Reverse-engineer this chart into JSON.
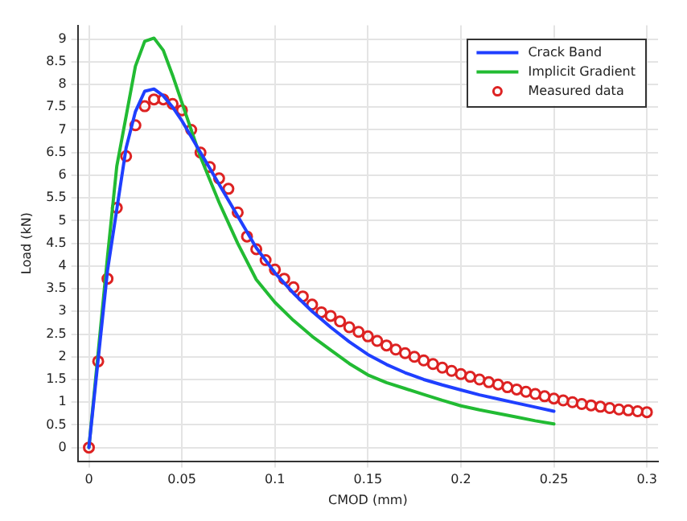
{
  "chart_data": {
    "type": "line",
    "xlabel": "CMOD (mm)",
    "ylabel": "Load (kN)",
    "xlim": [
      -0.006,
      0.306
    ],
    "xticks": [
      0,
      0.05,
      0.1,
      0.15,
      0.2,
      0.25,
      0.3
    ],
    "ylim": [
      -0.3,
      9.3
    ],
    "yticks": [
      0,
      0.5,
      1,
      1.5,
      2,
      2.5,
      3,
      3.5,
      4,
      4.5,
      5,
      5.5,
      6,
      6.5,
      7,
      7.5,
      8,
      8.5,
      9
    ],
    "grid": true,
    "legend": "top right",
    "series": [
      {
        "name": "Crack Band",
        "color": "#1f3fff",
        "type": "line",
        "marker": "none",
        "x": [
          0,
          0.01,
          0.02,
          0.025,
          0.03,
          0.035,
          0.04,
          0.045,
          0.05,
          0.06,
          0.07,
          0.08,
          0.09,
          0.1,
          0.11,
          0.12,
          0.13,
          0.14,
          0.15,
          0.16,
          0.17,
          0.18,
          0.19,
          0.2,
          0.21,
          0.22,
          0.23,
          0.24,
          0.25
        ],
        "values": [
          0,
          3.9,
          6.6,
          7.4,
          7.85,
          7.9,
          7.75,
          7.5,
          7.2,
          6.5,
          5.8,
          5.1,
          4.4,
          3.85,
          3.4,
          3.0,
          2.65,
          2.33,
          2.05,
          1.83,
          1.65,
          1.5,
          1.38,
          1.27,
          1.16,
          1.07,
          0.98,
          0.89,
          0.8
        ]
      },
      {
        "name": "Implicit Gradient",
        "color": "#22bb33",
        "type": "line",
        "marker": "none",
        "x": [
          0,
          0.01,
          0.015,
          0.02,
          0.025,
          0.03,
          0.035,
          0.04,
          0.045,
          0.05,
          0.06,
          0.07,
          0.08,
          0.09,
          0.1,
          0.11,
          0.12,
          0.13,
          0.14,
          0.15,
          0.16,
          0.17,
          0.18,
          0.19,
          0.2,
          0.21,
          0.22,
          0.23,
          0.24,
          0.25
        ],
        "values": [
          0,
          4.2,
          6.2,
          7.3,
          8.4,
          8.95,
          9.02,
          8.75,
          8.2,
          7.6,
          6.4,
          5.4,
          4.5,
          3.7,
          3.2,
          2.8,
          2.45,
          2.15,
          1.85,
          1.6,
          1.43,
          1.3,
          1.17,
          1.04,
          0.92,
          0.83,
          0.75,
          0.67,
          0.59,
          0.52
        ]
      },
      {
        "name": "Measured data",
        "color": "#dd2222",
        "type": "scatter",
        "marker": "circle",
        "x": [
          0,
          0.005,
          0.01,
          0.015,
          0.02,
          0.025,
          0.03,
          0.035,
          0.04,
          0.045,
          0.05,
          0.055,
          0.06,
          0.065,
          0.07,
          0.075,
          0.08,
          0.085,
          0.09,
          0.095,
          0.1,
          0.105,
          0.11,
          0.115,
          0.12,
          0.125,
          0.13,
          0.135,
          0.14,
          0.145,
          0.15,
          0.155,
          0.16,
          0.165,
          0.17,
          0.175,
          0.18,
          0.185,
          0.19,
          0.195,
          0.2,
          0.205,
          0.21,
          0.215,
          0.22,
          0.225,
          0.23,
          0.235,
          0.24,
          0.245,
          0.25,
          0.255,
          0.26,
          0.265,
          0.27,
          0.275,
          0.28,
          0.285,
          0.29,
          0.295,
          0.3
        ],
        "values": [
          0,
          1.9,
          3.72,
          5.28,
          6.42,
          7.1,
          7.52,
          7.67,
          7.67,
          7.57,
          7.43,
          7.0,
          6.5,
          6.18,
          5.93,
          5.7,
          5.18,
          4.65,
          4.37,
          4.13,
          3.92,
          3.72,
          3.53,
          3.33,
          3.15,
          2.98,
          2.9,
          2.78,
          2.65,
          2.55,
          2.45,
          2.35,
          2.25,
          2.16,
          2.08,
          2.0,
          1.92,
          1.84,
          1.76,
          1.69,
          1.62,
          1.56,
          1.5,
          1.44,
          1.39,
          1.33,
          1.28,
          1.23,
          1.18,
          1.13,
          1.08,
          1.04,
          1.0,
          0.96,
          0.93,
          0.9,
          0.87,
          0.84,
          0.82,
          0.8,
          0.78
        ]
      }
    ]
  }
}
